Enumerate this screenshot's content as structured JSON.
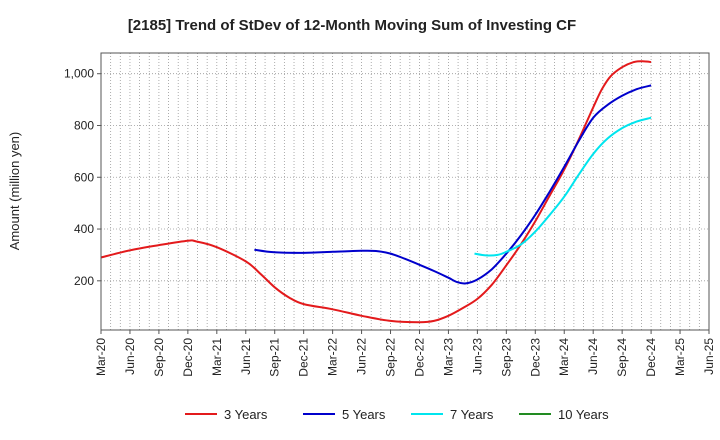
{
  "chart_data": {
    "type": "line",
    "title": "[2185]  Trend of StDev of 12-Month Moving Sum of Investing CF",
    "ylabel": "Amount (million yen)",
    "xlabel": "",
    "ylim": [
      10,
      1080
    ],
    "yticks": [
      200,
      400,
      600,
      800,
      1000
    ],
    "ytick_labels": [
      "200",
      "400",
      "600",
      "800",
      "1,000"
    ],
    "x_categories": [
      "Mar-20",
      "Jun-20",
      "Sep-20",
      "Dec-20",
      "Mar-21",
      "Jun-21",
      "Sep-21",
      "Dec-21",
      "Mar-22",
      "Jun-22",
      "Sep-22",
      "Dec-22",
      "Mar-23",
      "Jun-23",
      "Sep-23",
      "Dec-23",
      "Mar-24",
      "Jun-24",
      "Sep-24",
      "Dec-24",
      "Mar-25",
      "Jun-25"
    ],
    "grid": true,
    "legend_position": "bottom",
    "series": [
      {
        "name": "3 Years",
        "color": "#e31a1c",
        "points": [
          [
            0,
            290
          ],
          [
            1,
            318
          ],
          [
            2,
            338
          ],
          [
            3,
            355
          ],
          [
            3.3,
            352
          ],
          [
            4,
            330
          ],
          [
            5,
            275
          ],
          [
            5.5,
            228
          ],
          [
            6,
            175
          ],
          [
            6.5,
            135
          ],
          [
            7,
            110
          ],
          [
            8,
            90
          ],
          [
            9,
            65
          ],
          [
            10,
            45
          ],
          [
            11,
            40
          ],
          [
            11.5,
            45
          ],
          [
            12,
            65
          ],
          [
            12.5,
            95
          ],
          [
            13,
            130
          ],
          [
            13.5,
            185
          ],
          [
            14,
            260
          ],
          [
            14.5,
            340
          ],
          [
            15,
            430
          ],
          [
            15.5,
            530
          ],
          [
            16,
            630
          ],
          [
            16.5,
            745
          ],
          [
            17,
            870
          ],
          [
            17.3,
            940
          ],
          [
            17.6,
            990
          ],
          [
            18,
            1025
          ],
          [
            18.4,
            1045
          ],
          [
            18.7,
            1048
          ],
          [
            19,
            1045
          ]
        ]
      },
      {
        "name": "5 Years",
        "color": "#0000cc",
        "points": [
          [
            5.3,
            320
          ],
          [
            6,
            310
          ],
          [
            7,
            308
          ],
          [
            8,
            312
          ],
          [
            9,
            316
          ],
          [
            9.5,
            315
          ],
          [
            10,
            305
          ],
          [
            10.5,
            285
          ],
          [
            11,
            262
          ],
          [
            11.5,
            238
          ],
          [
            12,
            212
          ],
          [
            12.3,
            195
          ],
          [
            12.6,
            190
          ],
          [
            13,
            205
          ],
          [
            13.5,
            245
          ],
          [
            14,
            305
          ],
          [
            14.5,
            375
          ],
          [
            15,
            455
          ],
          [
            15.5,
            545
          ],
          [
            16,
            640
          ],
          [
            16.5,
            740
          ],
          [
            17,
            830
          ],
          [
            17.5,
            880
          ],
          [
            18,
            915
          ],
          [
            18.5,
            940
          ],
          [
            19,
            955
          ]
        ]
      },
      {
        "name": "7 Years",
        "color": "#00e5ee",
        "points": [
          [
            12.9,
            305
          ],
          [
            13.3,
            298
          ],
          [
            13.7,
            300
          ],
          [
            14,
            312
          ],
          [
            14.5,
            340
          ],
          [
            15,
            390
          ],
          [
            15.5,
            455
          ],
          [
            16,
            525
          ],
          [
            16.5,
            610
          ],
          [
            17,
            690
          ],
          [
            17.5,
            750
          ],
          [
            18,
            790
          ],
          [
            18.5,
            815
          ],
          [
            19,
            830
          ]
        ]
      },
      {
        "name": "10 Years",
        "color": "#228b22",
        "points": []
      }
    ]
  }
}
